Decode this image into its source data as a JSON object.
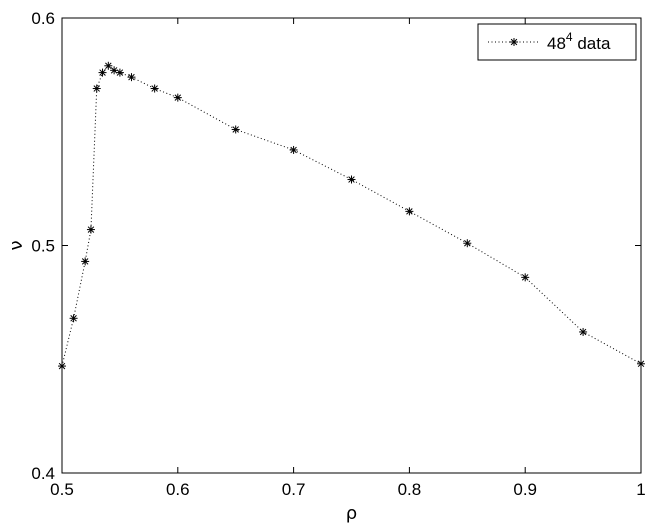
{
  "chart_data": {
    "type": "line",
    "xlabel": "ρ",
    "ylabel": "ν",
    "xlim": [
      0.5,
      1.0
    ],
    "ylim": [
      0.4,
      0.6
    ],
    "x_ticks": [
      0.5,
      0.6,
      0.7,
      0.8,
      0.9,
      1.0
    ],
    "y_ticks": [
      0.4,
      0.5,
      0.6
    ],
    "x_tick_labels": [
      "0.5",
      "0.6",
      "0.7",
      "0.8",
      "0.9",
      "1"
    ],
    "y_tick_labels": [
      "0.4",
      "0.5",
      "0.6"
    ],
    "grid": false,
    "legend_position": "top-right",
    "series": [
      {
        "name": "48",
        "name_superscript": "4",
        "name_suffix": " data",
        "line_style": "dotted",
        "marker": "asterisk",
        "color": "#000000",
        "x": [
          0.5,
          0.51,
          0.52,
          0.525,
          0.53,
          0.535,
          0.54,
          0.545,
          0.55,
          0.56,
          0.58,
          0.6,
          0.65,
          0.7,
          0.75,
          0.8,
          0.85,
          0.9,
          0.95,
          1.0
        ],
        "y": [
          0.447,
          0.468,
          0.493,
          0.507,
          0.569,
          0.576,
          0.579,
          0.577,
          0.576,
          0.574,
          0.569,
          0.565,
          0.551,
          0.542,
          0.529,
          0.515,
          0.501,
          0.486,
          0.462,
          0.448
        ]
      }
    ]
  }
}
